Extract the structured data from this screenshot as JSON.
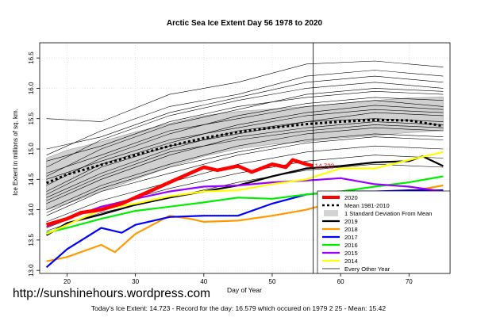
{
  "watermark": "http://sunshinehours.wordpress.com",
  "footer": "Today's Ice Extent: 14.723  - Record for the day: 16.579 which occured on 1979 2 25  - Mean: 15.42",
  "chart_data": {
    "type": "line",
    "title": "Arctic Sea Ice Extent Day 56 1978 to 2020",
    "xlabel": "Day of Year",
    "ylabel": "Ice Extent in millions of sq. km.",
    "xlim": [
      16,
      76
    ],
    "ylim": [
      12.95,
      16.75
    ],
    "xticks": [
      20,
      30,
      40,
      50,
      60,
      70
    ],
    "yticks": [
      13.0,
      13.5,
      14.0,
      14.5,
      15.0,
      15.5,
      16.0,
      16.5
    ],
    "current_day": 56,
    "current_label": "14.723",
    "grid": true,
    "legend_position": "bottom-right",
    "legend": [
      {
        "label": "2020",
        "color": "#ff0000",
        "style": "solid-thick"
      },
      {
        "label": "Mean 1981-2010",
        "color": "#000000",
        "style": "dotted"
      },
      {
        "label": "1 Standard Deviation From Mean",
        "color": "#d3d3d3",
        "style": "box"
      },
      {
        "label": "2019",
        "color": "#000000",
        "style": "solid"
      },
      {
        "label": "2018",
        "color": "#ff9900",
        "style": "solid"
      },
      {
        "label": "2017",
        "color": "#0000ff",
        "style": "solid"
      },
      {
        "label": "2016",
        "color": "#00ee00",
        "style": "solid"
      },
      {
        "label": "2015",
        "color": "#9900ff",
        "style": "solid"
      },
      {
        "label": "2014",
        "color": "#ffff00",
        "style": "solid"
      },
      {
        "label": "Every Other Year",
        "color": "#000000",
        "style": "thin"
      }
    ],
    "std_band": {
      "x": [
        17,
        20,
        25,
        30,
        35,
        40,
        45,
        50,
        55,
        60,
        65,
        70,
        75
      ],
      "upper": [
        14.85,
        14.98,
        15.12,
        15.28,
        15.42,
        15.55,
        15.62,
        15.66,
        15.7,
        15.75,
        15.8,
        15.84,
        15.86
      ],
      "lower": [
        14.0,
        14.1,
        14.3,
        14.5,
        14.7,
        14.88,
        15.0,
        15.08,
        15.12,
        15.18,
        15.22,
        15.27,
        15.3
      ]
    },
    "series": [
      {
        "name": "Mean 1981-2010",
        "color": "#000000",
        "style": "dotted",
        "x": [
          17,
          20,
          25,
          30,
          35,
          40,
          45,
          50,
          55,
          60,
          65,
          70,
          75
        ],
        "y": [
          14.44,
          14.58,
          14.74,
          14.9,
          15.05,
          15.18,
          15.28,
          15.35,
          15.41,
          15.45,
          15.48,
          15.47,
          15.38
        ]
      },
      {
        "name": "2019",
        "color": "#000000",
        "style": "solid",
        "x": [
          17,
          20,
          25,
          30,
          35,
          40,
          45,
          50,
          55,
          60,
          65,
          70,
          72,
          75
        ],
        "y": [
          13.58,
          13.78,
          13.92,
          14.08,
          14.2,
          14.3,
          14.4,
          14.55,
          14.68,
          14.72,
          14.78,
          14.8,
          14.88,
          14.72
        ]
      },
      {
        "name": "2018",
        "color": "#ff9900",
        "style": "solid",
        "x": [
          17,
          20,
          25,
          27,
          30,
          35,
          38,
          40,
          45,
          50,
          55,
          60,
          65,
          70,
          75
        ],
        "y": [
          13.15,
          13.22,
          13.42,
          13.3,
          13.6,
          13.9,
          13.85,
          13.8,
          13.82,
          13.9,
          14.0,
          14.15,
          14.25,
          14.3,
          14.4
        ]
      },
      {
        "name": "2017",
        "color": "#0000ff",
        "style": "solid",
        "x": [
          17,
          20,
          25,
          28,
          30,
          35,
          40,
          45,
          50,
          55,
          60,
          65,
          70,
          75
        ],
        "y": [
          13.05,
          13.35,
          13.7,
          13.62,
          13.75,
          13.88,
          13.9,
          13.9,
          14.1,
          14.25,
          14.3,
          14.3,
          14.32,
          14.32
        ]
      },
      {
        "name": "2016",
        "color": "#00ee00",
        "style": "solid",
        "x": [
          17,
          20,
          25,
          30,
          35,
          40,
          45,
          50,
          55,
          60,
          65,
          70,
          75
        ],
        "y": [
          13.62,
          13.7,
          13.85,
          13.98,
          14.05,
          14.12,
          14.2,
          14.18,
          14.25,
          14.3,
          14.38,
          14.45,
          14.55
        ]
      },
      {
        "name": "2015",
        "color": "#9900ff",
        "style": "solid",
        "x": [
          17,
          20,
          25,
          30,
          35,
          40,
          45,
          50,
          55,
          60,
          65,
          70,
          75
        ],
        "y": [
          13.72,
          13.85,
          14.05,
          14.18,
          14.3,
          14.38,
          14.4,
          14.45,
          14.48,
          14.52,
          14.42,
          14.38,
          14.3
        ]
      },
      {
        "name": "2014",
        "color": "#ffff00",
        "style": "solid",
        "x": [
          17,
          20,
          25,
          30,
          35,
          40,
          45,
          50,
          55,
          60,
          65,
          70,
          75
        ],
        "y": [
          13.6,
          13.75,
          14.0,
          14.1,
          14.22,
          14.3,
          14.32,
          14.42,
          14.5,
          14.68,
          14.68,
          14.82,
          14.95
        ]
      },
      {
        "name": "2020",
        "color": "#ff0000",
        "style": "solid-thick",
        "x": [
          17,
          20,
          22,
          25,
          28,
          30,
          33,
          35,
          38,
          40,
          42,
          45,
          47,
          50,
          52,
          53,
          55,
          56
        ],
        "y": [
          13.75,
          13.85,
          13.95,
          14.0,
          14.1,
          14.2,
          14.35,
          14.45,
          14.6,
          14.7,
          14.65,
          14.72,
          14.62,
          14.75,
          14.7,
          14.82,
          14.75,
          14.72
        ]
      }
    ],
    "other_years": [
      {
        "x": [
          17,
          25,
          35,
          45,
          55,
          65,
          75
        ],
        "y": [
          14.9,
          15.3,
          15.7,
          15.9,
          16.2,
          16.3,
          16.2
        ]
      },
      {
        "x": [
          17,
          25,
          35,
          45,
          55,
          65,
          75
        ],
        "y": [
          14.7,
          15.15,
          15.55,
          15.8,
          16.0,
          16.1,
          16.0
        ]
      },
      {
        "x": [
          17,
          25,
          35,
          45,
          55,
          65,
          75
        ],
        "y": [
          14.55,
          15.0,
          15.4,
          15.65,
          15.9,
          16.0,
          15.95
        ]
      },
      {
        "x": [
          17,
          25,
          35,
          45,
          55,
          65,
          75
        ],
        "y": [
          14.4,
          14.85,
          15.25,
          15.55,
          15.75,
          15.85,
          15.8
        ]
      },
      {
        "x": [
          17,
          25,
          35,
          45,
          55,
          65,
          75
        ],
        "y": [
          14.3,
          14.75,
          15.1,
          15.4,
          15.6,
          15.72,
          15.65
        ]
      },
      {
        "x": [
          17,
          25,
          35,
          45,
          55,
          65,
          75
        ],
        "y": [
          14.2,
          14.6,
          15.0,
          15.3,
          15.45,
          15.6,
          15.55
        ]
      },
      {
        "x": [
          17,
          25,
          35,
          45,
          55,
          65,
          75
        ],
        "y": [
          14.1,
          14.5,
          14.9,
          15.2,
          15.35,
          15.45,
          15.4
        ]
      },
      {
        "x": [
          17,
          25,
          35,
          45,
          55,
          65,
          75
        ],
        "y": [
          14.0,
          14.4,
          14.75,
          15.05,
          15.25,
          15.35,
          15.3
        ]
      },
      {
        "x": [
          17,
          25,
          35,
          45,
          55,
          65,
          75
        ],
        "y": [
          13.9,
          14.3,
          14.6,
          14.9,
          15.1,
          15.2,
          15.15
        ]
      },
      {
        "x": [
          17,
          25,
          35,
          45,
          55,
          65,
          75
        ],
        "y": [
          13.8,
          14.15,
          14.45,
          14.75,
          14.95,
          15.05,
          15.0
        ]
      },
      {
        "x": [
          17,
          25,
          35,
          45,
          55,
          65,
          75
        ],
        "y": [
          13.7,
          14.05,
          14.35,
          14.6,
          14.8,
          14.9,
          14.85
        ]
      },
      {
        "x": [
          17,
          25,
          35,
          45,
          55,
          65,
          75
        ],
        "y": [
          13.65,
          13.95,
          14.2,
          14.45,
          14.65,
          14.75,
          14.7
        ]
      },
      {
        "x": [
          17,
          25,
          35,
          45,
          55,
          65,
          75
        ],
        "y": [
          15.5,
          15.45,
          15.9,
          16.1,
          16.4,
          16.45,
          16.35
        ]
      },
      {
        "x": [
          17,
          25,
          35,
          45,
          55,
          65,
          75
        ],
        "y": [
          15.0,
          15.2,
          15.6,
          15.85,
          16.1,
          16.2,
          16.1
        ]
      },
      {
        "x": [
          17,
          25,
          35,
          45,
          55,
          65,
          75
        ],
        "y": [
          14.8,
          15.05,
          15.45,
          15.7,
          15.85,
          15.95,
          15.9
        ]
      },
      {
        "x": [
          17,
          25,
          35,
          45,
          55,
          65,
          75
        ],
        "y": [
          14.6,
          14.9,
          15.3,
          15.5,
          15.7,
          15.8,
          15.7
        ]
      },
      {
        "x": [
          17,
          25,
          35,
          45,
          55,
          65,
          75
        ],
        "y": [
          14.5,
          14.8,
          15.15,
          15.35,
          15.55,
          15.65,
          15.6
        ]
      },
      {
        "x": [
          17,
          25,
          35,
          45,
          55,
          65,
          75
        ],
        "y": [
          14.25,
          14.7,
          15.05,
          15.25,
          15.45,
          15.5,
          15.45
        ]
      },
      {
        "x": [
          17,
          25,
          35,
          45,
          55,
          65,
          75
        ],
        "y": [
          14.15,
          14.55,
          14.95,
          15.15,
          15.3,
          15.4,
          15.35
        ]
      },
      {
        "x": [
          17,
          25,
          35,
          45,
          55,
          65,
          75
        ],
        "y": [
          13.95,
          14.35,
          14.7,
          14.95,
          15.15,
          15.25,
          15.2
        ]
      }
    ]
  }
}
